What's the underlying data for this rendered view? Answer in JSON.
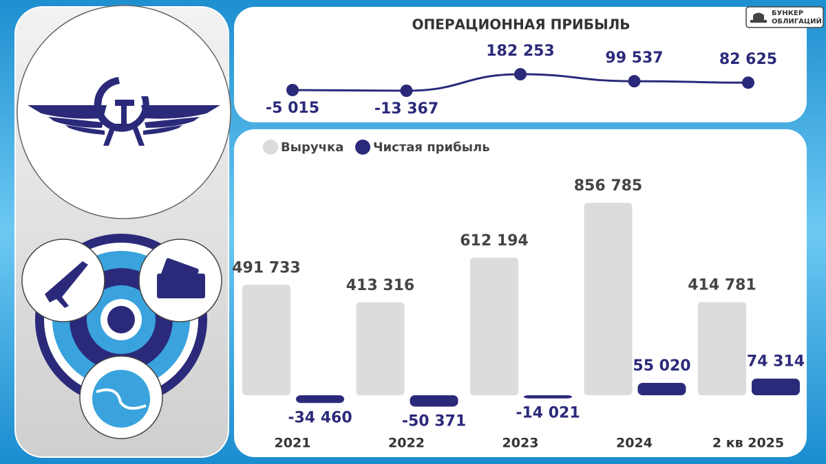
{
  "brand": {
    "line1": "БУНКЕР",
    "line2": "ОБЛИГАЦИЙ"
  },
  "chart_data": [
    {
      "type": "line",
      "title": "ОПЕРАЦИОННАЯ ПРИБЫЛЬ",
      "color": "#2b2a7a",
      "values": [
        -5015,
        -13367,
        182253,
        99537,
        82625
      ],
      "value_labels": [
        "-5 015",
        "-13 367",
        "182 253",
        "99 537",
        "82 625"
      ]
    },
    {
      "type": "bar",
      "categories": [
        "2021",
        "2022",
        "2023",
        "2024",
        "2 кв 2025"
      ],
      "legend": "top-left",
      "series": [
        {
          "name": "Выручка",
          "color": "#dcdcdc",
          "values": [
            491733,
            413316,
            612194,
            856785,
            414781
          ],
          "value_labels": [
            "491 733",
            "413 316",
            "612 194",
            "856 785",
            "414 781"
          ]
        },
        {
          "name": "Чистая прибыль",
          "color": "#2b2a7a",
          "values": [
            -34460,
            -50371,
            -14021,
            55020,
            74314
          ],
          "value_labels": [
            "-34 460",
            "-50 371",
            "-14 021",
            "55 020",
            "74 314"
          ]
        }
      ]
    }
  ]
}
